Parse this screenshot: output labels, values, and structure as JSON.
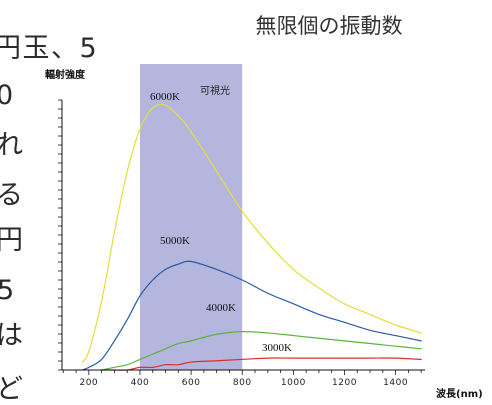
{
  "background_text": {
    "lines": [
      "円玉、5",
      "0",
      "れ",
      "る",
      "円",
      "5",
      "は",
      "ど"
    ]
  },
  "chart_data": {
    "type": "line",
    "title": "無限個の振動数",
    "xlabel": "波長(nm)",
    "ylabel": "輻射強度",
    "xlim": [
      95,
      1515
    ],
    "ylim": [
      0,
      1.02
    ],
    "xticks": [
      200,
      400,
      600,
      800,
      1000,
      1200,
      1400
    ],
    "grid": false,
    "band": {
      "label": "可視光",
      "x": [
        400,
        800
      ],
      "color": "#b4b6de"
    },
    "x": [
      175,
      200,
      250,
      300,
      350,
      400,
      450,
      500,
      550,
      600,
      700,
      800,
      900,
      1000,
      1100,
      1200,
      1300,
      1400,
      1500
    ],
    "series": [
      {
        "name": "6000K",
        "color": "#e5de3c",
        "values": [
          0.03,
          0.07,
          0.26,
          0.52,
          0.75,
          0.91,
          0.99,
          1.0,
          0.96,
          0.9,
          0.75,
          0.6,
          0.48,
          0.38,
          0.31,
          0.25,
          0.21,
          0.17,
          0.14
        ]
      },
      {
        "name": "5000K",
        "color": "#2c5aa8",
        "values": [
          0.0,
          0.01,
          0.04,
          0.11,
          0.19,
          0.28,
          0.34,
          0.38,
          0.4,
          0.41,
          0.38,
          0.34,
          0.29,
          0.25,
          0.21,
          0.18,
          0.15,
          0.13,
          0.11
        ]
      },
      {
        "name": "4000K",
        "color": "#5db339",
        "values": [
          null,
          null,
          0.0,
          0.01,
          0.02,
          0.04,
          0.06,
          0.08,
          0.1,
          0.11,
          0.135,
          0.145,
          0.14,
          0.13,
          0.12,
          0.11,
          0.1,
          0.09,
          0.08
        ]
      },
      {
        "name": "3000K",
        "color": "#d9302c",
        "values": [
          null,
          null,
          0.0,
          0.0,
          0.0,
          0.01,
          0.01,
          0.02,
          0.02,
          0.03,
          0.035,
          0.04,
          0.045,
          0.045,
          0.045,
          0.045,
          0.045,
          0.045,
          0.04
        ]
      }
    ]
  }
}
